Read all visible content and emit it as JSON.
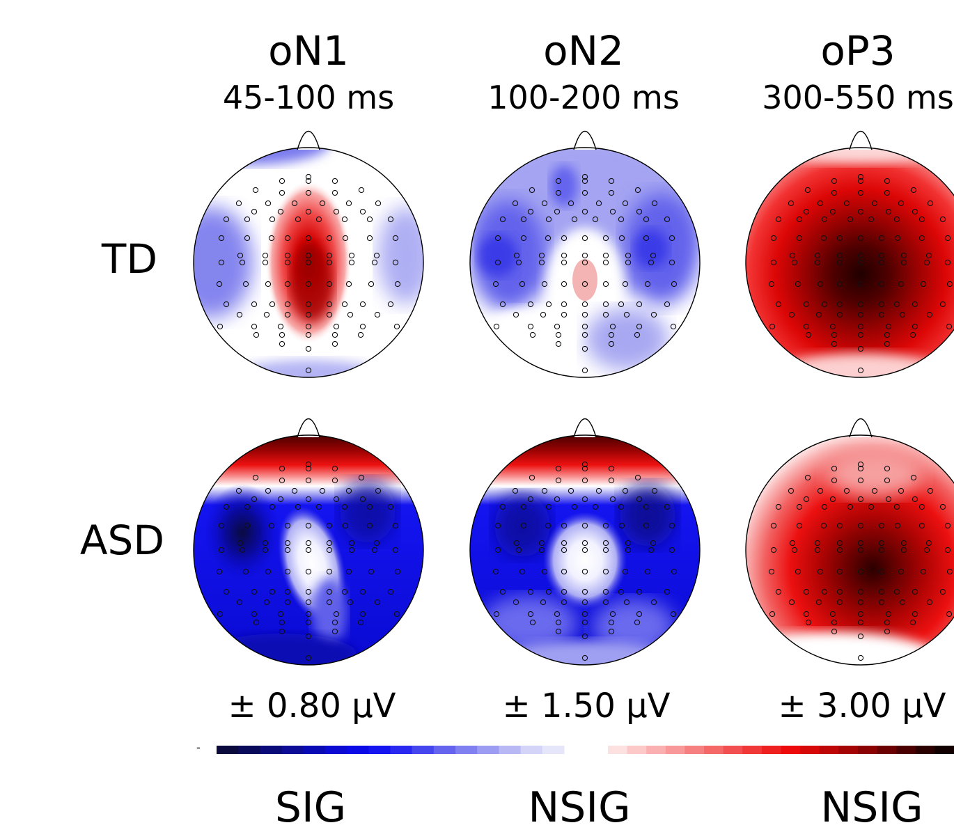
{
  "columns": [
    {
      "component": "oN1",
      "window": "45-100 ms",
      "scale": "± 0.80 µV",
      "significance": "SIG"
    },
    {
      "component": "oN2",
      "window": "100-200 ms",
      "scale": "± 1.50 µV",
      "significance": "NSIG"
    },
    {
      "component": "oP3",
      "window": "300-550 ms",
      "scale": "± 3.00 µV",
      "significance": "NSIG"
    }
  ],
  "rows": [
    {
      "label": "TD"
    },
    {
      "label": "ASD"
    }
  ],
  "colorbar": {
    "minus_label": "-",
    "negative_colors": [
      "#0a0a3c",
      "#0a0a5a",
      "#0a0a78",
      "#0c0c96",
      "#0a0ab4",
      "#0a0ad2",
      "#0a0ae6",
      "#1414f0",
      "#2828f0",
      "#4646ee",
      "#6464ee",
      "#8080f0",
      "#9c9cf2",
      "#b8b8f5",
      "#d4d4f8",
      "#e6e6fa"
    ],
    "positive_colors": [
      "#fde0e0",
      "#fcc8c8",
      "#fab0b0",
      "#f89898",
      "#f68080",
      "#f46868",
      "#f25050",
      "#f03838",
      "#ee2020",
      "#ec0a0a",
      "#d60808",
      "#be0606",
      "#a40404",
      "#8a0202",
      "#6c0101",
      "#4a0000",
      "#2a0000",
      "#120000"
    ]
  },
  "colors": {
    "outline": "#000000",
    "neutral": "#ffffff"
  }
}
